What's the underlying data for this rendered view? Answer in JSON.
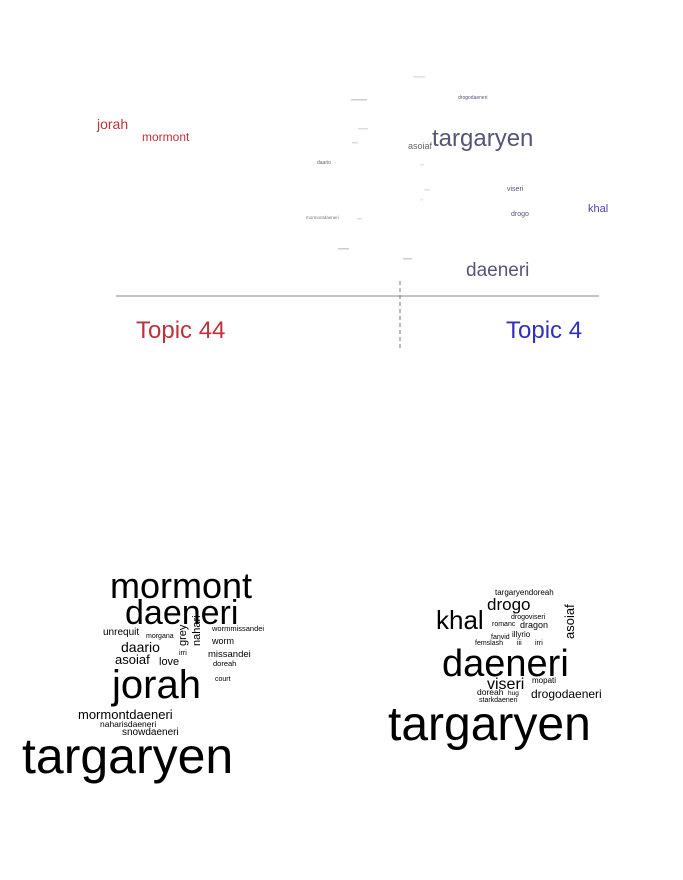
{
  "topics": {
    "left": {
      "label": "Topic 44",
      "color": "#c0313a"
    },
    "right": {
      "label": "Topic 4",
      "color": "#3030c0"
    }
  },
  "comparison_words": [
    {
      "text": "jorah",
      "color": "#c0313a"
    },
    {
      "text": "mormont",
      "color": "#c0313a"
    },
    {
      "text": "targaryen",
      "color": "#55557a"
    },
    {
      "text": "asoiaf",
      "color": "#666666"
    },
    {
      "text": "daeneri",
      "color": "#55557a"
    },
    {
      "text": "khal",
      "color": "#4a3faa"
    },
    {
      "text": "viseri",
      "color": "#55557a"
    },
    {
      "text": "drogo",
      "color": "#55557a"
    },
    {
      "text": "drogodaeneri",
      "color": "#55557a"
    },
    {
      "text": "daario",
      "color": "#666666"
    },
    {
      "text": "mormontdaeneri",
      "color": "#777777"
    }
  ],
  "wordcloud_left": [
    {
      "text": "mormont"
    },
    {
      "text": "daeneri"
    },
    {
      "text": "unrequit"
    },
    {
      "text": "morgana"
    },
    {
      "text": "grey"
    },
    {
      "text": "nahari"
    },
    {
      "text": "wormmissandei"
    },
    {
      "text": "worm"
    },
    {
      "text": "daario"
    },
    {
      "text": "irri"
    },
    {
      "text": "missandei"
    },
    {
      "text": "asoiaf"
    },
    {
      "text": "love"
    },
    {
      "text": "doreah"
    },
    {
      "text": "jorah"
    },
    {
      "text": "court"
    },
    {
      "text": "mormontdaeneri"
    },
    {
      "text": "naharisdaeneri"
    },
    {
      "text": "snowdaeneri"
    },
    {
      "text": "targaryen"
    }
  ],
  "wordcloud_right": [
    {
      "text": "targaryendoreah"
    },
    {
      "text": "drogo"
    },
    {
      "text": "khal"
    },
    {
      "text": "asoiaf"
    },
    {
      "text": "drogoviseri"
    },
    {
      "text": "romanc"
    },
    {
      "text": "dragon"
    },
    {
      "text": "fanvid"
    },
    {
      "text": "illyrio"
    },
    {
      "text": "femslash"
    },
    {
      "text": "iii"
    },
    {
      "text": "irri"
    },
    {
      "text": "daeneri"
    },
    {
      "text": "viseri"
    },
    {
      "text": "mopati"
    },
    {
      "text": "doreah"
    },
    {
      "text": "hug"
    },
    {
      "text": "drogodaeneri"
    },
    {
      "text": "starkdaeneri"
    },
    {
      "text": "targaryen"
    }
  ]
}
